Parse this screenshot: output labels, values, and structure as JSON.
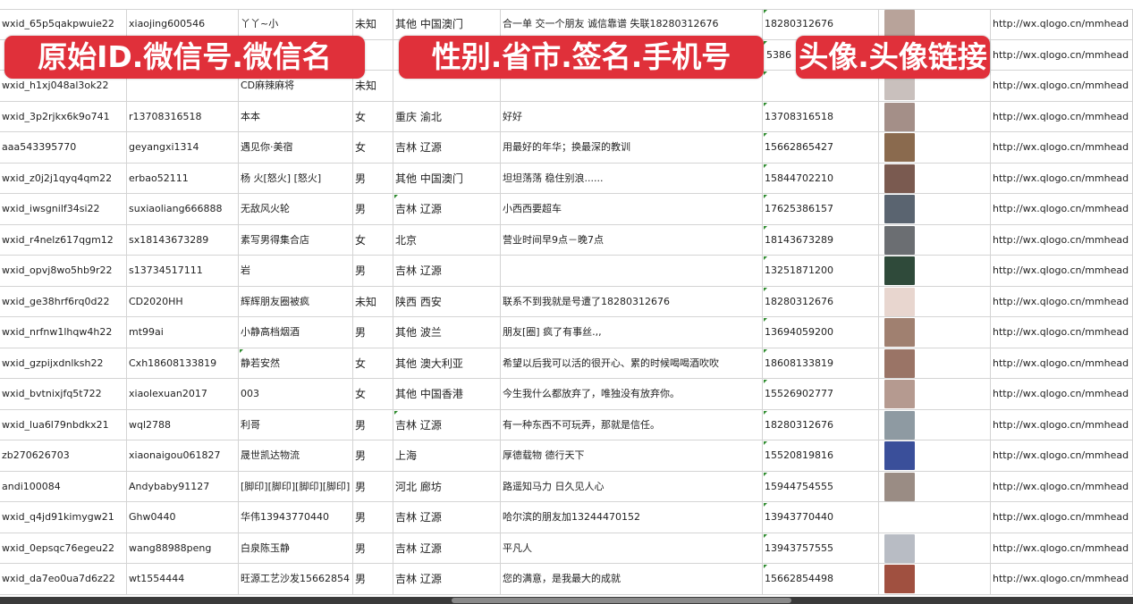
{
  "overlay_labels": [
    "原始ID.微信号.微信名",
    "性别.省市.签名.手机号",
    "头像.头像链接"
  ],
  "colors": {
    "label_bg": "#e0303a",
    "grid": "#d4d4d4",
    "flag": "#2e8b2e"
  },
  "rows": [
    {
      "id": "wxid_65p5qakpwuie22",
      "wechat": "xiaojing600546",
      "name": "丫丫~小",
      "gender": "未知",
      "region": "其他 中国澳门",
      "signature": "合一单 交一个朋友 诚信靠谱 失联18280312676",
      "phone": "18280312676",
      "avatar": "#b8a39a",
      "link": "http://wx.qlogo.cn/mmhead"
    },
    {
      "id": "",
      "wechat": "",
      "name": "",
      "gender": "",
      "region": "",
      "signature": "",
      "phone": "5386",
      "avatar": "#7b88b0",
      "link": "http://wx.qlogo.cn/mmhead"
    },
    {
      "id": "wxid_h1xj048al3ok22",
      "wechat": "",
      "name": "CD麻辣麻将",
      "gender": "未知",
      "region": "",
      "signature": "",
      "phone": "",
      "avatar": "#c9c0bd",
      "link": "http://wx.qlogo.cn/mmhead"
    },
    {
      "id": "wxid_3p2rjkx6k9o741",
      "wechat": "r13708316518",
      "name": "本本",
      "gender": "女",
      "region": "重庆 渝北",
      "signature": "好好",
      "phone": "13708316518",
      "avatar": "#a48f88",
      "link": "http://wx.qlogo.cn/mmhead"
    },
    {
      "id": "aaa543395770",
      "wechat": "geyangxi1314",
      "name": "遇见你·美宿",
      "gender": "女",
      "region": "吉林 辽源",
      "signature": "用最好的年华；换最深的教训",
      "phone": "15662865427",
      "avatar": "#8a6a4e",
      "link": "http://wx.qlogo.cn/mmhead"
    },
    {
      "id": "wxid_z0j2j1qyq4qm22",
      "wechat": "erbao52111",
      "name": "杨 火[怒火] [怒火]",
      "gender": "男",
      "region": "其他 中国澳门",
      "signature": "坦坦荡荡 稳住别浪......",
      "phone": "15844702210",
      "avatar": "#7a5a50",
      "link": "http://wx.qlogo.cn/mmhead"
    },
    {
      "id": "wxid_iwsgnilf34si22",
      "wechat": "suxiaoliang666888",
      "name": "无敌风火轮",
      "gender": "男",
      "region": "吉林 辽源",
      "signature": "小西西要超车",
      "phone": "17625386157",
      "avatar": "#5a6470",
      "link": "http://wx.qlogo.cn/mmhead"
    },
    {
      "id": "wxid_r4nelz617qgm12",
      "wechat": "sx18143673289",
      "name": "素写男得集合店",
      "gender": "女",
      "region": "北京",
      "signature": "营业时间早9点－晚7点",
      "phone": "18143673289",
      "avatar": "#6b6e72",
      "link": "http://wx.qlogo.cn/mmhead"
    },
    {
      "id": "wxid_opvj8wo5hb9r22",
      "wechat": "s13734517111",
      "name": "岩",
      "gender": "男",
      "region": "吉林 辽源",
      "signature": "",
      "phone": "13251871200",
      "avatar": "#2f4a3a",
      "link": "http://wx.qlogo.cn/mmhead"
    },
    {
      "id": "wxid_ge38hrf6rq0d22",
      "wechat": "CD2020HH",
      "name": "辉辉朋友圈被疯",
      "gender": "未知",
      "region": "陕西 西安",
      "signature": "联系不到我就是号遭了18280312676",
      "phone": "18280312676",
      "avatar": "#e8d6cf",
      "link": "http://wx.qlogo.cn/mmhead"
    },
    {
      "id": "wxid_nrfnw1lhqw4h22",
      "wechat": "mt99ai",
      "name": "小静高档烟酒",
      "gender": "男",
      "region": "其他 波兰",
      "signature": "朋友[圈] 疯了有事丝.,,",
      "phone": "13694059200",
      "avatar": "#a08070",
      "link": "http://wx.qlogo.cn/mmhead"
    },
    {
      "id": "wxid_gzpijxdnlksh22",
      "wechat": "Cxh18608133819",
      "name": "静若安然",
      "gender": "女",
      "region": "其他 澳大利亚",
      "signature": "希望以后我可以活的很开心、累的时候喝喝酒吹吹",
      "phone": "18608133819",
      "avatar": "#9a7466",
      "link": "http://wx.qlogo.cn/mmhead"
    },
    {
      "id": "wxid_bvtnixjfq5t722",
      "wechat": "xiaolexuan2017",
      "name": "003",
      "gender": "女",
      "region": "其他 中国香港",
      "signature": "今生我什么都放弃了，唯独没有放弃你。",
      "phone": "15526902777",
      "avatar": "#b59a90",
      "link": "http://wx.qlogo.cn/mmhead"
    },
    {
      "id": "wxid_lua6l79nbdkx21",
      "wechat": "wql2788",
      "name": "利哥",
      "gender": "男",
      "region": "吉林 辽源",
      "signature": "有一种东西不可玩弄，那就是信任。",
      "phone": "18280312676",
      "avatar": "#8e9aa2",
      "link": "http://wx.qlogo.cn/mmhead"
    },
    {
      "id": "zb270626703",
      "wechat": "xiaonaigou061827",
      "name": "晟世凯达物流",
      "gender": "男",
      "region": "上海",
      "signature": "厚德载物 德行天下",
      "phone": "15520819816",
      "avatar": "#3a4f9a",
      "link": "http://wx.qlogo.cn/mmhead"
    },
    {
      "id": "andi100084",
      "wechat": "Andybaby91127",
      "name": "[脚印][脚印][脚印][脚印]",
      "gender": "男",
      "region": "河北 廊坊",
      "signature": "路遥知马力 日久见人心",
      "phone": "15944754555",
      "avatar": "#9a8c84",
      "link": "http://wx.qlogo.cn/mmhead"
    },
    {
      "id": "wxid_q4jd91kimygw21",
      "wechat": "Ghw0440",
      "name": "华伟13943770440",
      "gender": "男",
      "region": "吉林 辽源",
      "signature": "哈尔滨的朋友加13244470152",
      "phone": "13943770440",
      "avatar": "#ffffff",
      "link": "http://wx.qlogo.cn/mmhead"
    },
    {
      "id": "wxid_0epsqc76egeu22",
      "wechat": "wang88988peng",
      "name": "白泉陈玉静",
      "gender": "男",
      "region": "吉林 辽源",
      "signature": "平凡人",
      "phone": "13943757555",
      "avatar": "#b8bcc4",
      "link": "http://wx.qlogo.cn/mmhead"
    },
    {
      "id": "wxid_da7eo0ua7d6z22",
      "wechat": "wt1554444",
      "name": "旺源工艺沙发15662854",
      "gender": "男",
      "region": "吉林 辽源",
      "signature": "您的满意，是我最大的成就",
      "phone": "15662854498",
      "avatar": "#a05040",
      "link": "http://wx.qlogo.cn/mmhead"
    }
  ]
}
